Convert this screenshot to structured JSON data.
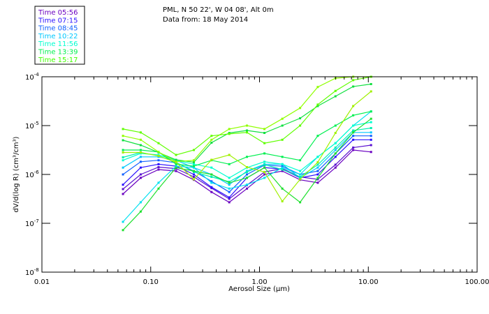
{
  "chart_data": {
    "type": "line",
    "title_lines": [
      "PML, N 50 22', W 04 08', Alt 0m",
      "Data from: 18 May 2014"
    ],
    "xlabel": "Aerosol Size (µm)",
    "ylabel": "dV/d(log R) (cm³/cm³)",
    "xscale": "log",
    "yscale": "log",
    "xlim": [
      0.01,
      100
    ],
    "ylim": [
      1e-08,
      0.0001
    ],
    "xticks": [
      {
        "v": 0.01,
        "label": "0.01"
      },
      {
        "v": 0.1,
        "label": "0.10"
      },
      {
        "v": 1,
        "label": "1.00"
      },
      {
        "v": 10,
        "label": "10.00"
      },
      {
        "v": 100,
        "label": "100.00"
      }
    ],
    "yticks": [
      {
        "exp": -4,
        "label": "10",
        "sup": "-4"
      },
      {
        "exp": -5,
        "label": "10",
        "sup": "-5"
      },
      {
        "exp": -6,
        "label": "10",
        "sup": "-6"
      },
      {
        "exp": -7,
        "label": "10",
        "sup": "-7"
      },
      {
        "exp": -8,
        "label": "10",
        "sup": "-8"
      }
    ],
    "legend_position": "top-left, outside",
    "legend": [
      {
        "label": "Time 05:56",
        "color": "#6a00c0"
      },
      {
        "label": "Time 07:15",
        "color": "#2a10ff"
      },
      {
        "label": "Time 08:45",
        "color": "#1060ff"
      },
      {
        "label": "Time 10:22",
        "color": "#00c8ff"
      },
      {
        "label": "Time 11:56",
        "color": "#00ffd0"
      },
      {
        "label": "Time 13:39",
        "color": "#00f050"
      },
      {
        "label": "Time 15:17",
        "color": "#40ff00"
      }
    ],
    "x_um": [
      0.0556,
      0.0809,
      0.118,
      0.171,
      0.249,
      0.362,
      0.527,
      0.766,
      1.11,
      1.62,
      2.36,
      3.43,
      4.99,
      7.26,
      10.6
    ],
    "series_note": "values_log10 = log10 of dV/d(log R)",
    "series": [
      {
        "name": "Time 05:56",
        "color": "#6a00c0",
        "values_log10": [
          -6.4,
          -6.07,
          -5.9,
          -5.93,
          -6.11,
          -6.36,
          -6.57,
          -6.29,
          -6.0,
          -5.93,
          -6.11,
          -6.17,
          -5.86,
          -5.5,
          -5.54
        ]
      },
      {
        "name": "Time 05:56",
        "color": "#5a10d0",
        "values_log10": [
          -6.3,
          -6.0,
          -5.85,
          -5.88,
          -6.05,
          -6.28,
          -6.5,
          -6.22,
          -5.95,
          -5.88,
          -6.05,
          -6.1,
          -5.8,
          -5.45,
          -5.4
        ]
      },
      {
        "name": "Time 07:15",
        "color": "#2a10ff",
        "values_log10": [
          -6.21,
          -5.86,
          -5.79,
          -5.83,
          -6.0,
          -6.26,
          -6.47,
          -6.07,
          -5.86,
          -5.89,
          -6.07,
          -6.0,
          -5.64,
          -5.29,
          -5.29
        ]
      },
      {
        "name": "Time 08:45",
        "color": "#1060ff",
        "values_log10": [
          -6.0,
          -5.74,
          -5.71,
          -5.76,
          -5.93,
          -6.14,
          -6.36,
          -6.0,
          -5.81,
          -5.83,
          -6.0,
          -5.93,
          -5.57,
          -5.21,
          -5.21
        ]
      },
      {
        "name": "Time 10:22",
        "color": "#00c8ff",
        "values_log10": [
          -5.86,
          -5.64,
          -5.64,
          -5.71,
          -5.86,
          -6.0,
          -6.21,
          -5.93,
          -5.79,
          -5.79,
          -6.07,
          -5.86,
          -5.5,
          -5.14,
          -5.14
        ]
      },
      {
        "name": "Time 10:22",
        "color": "#00e0f0",
        "values_log10": [
          -6.97,
          -6.57,
          -6.17,
          -5.83,
          -5.86,
          -6.17,
          -6.29,
          -6.21,
          -6.07,
          -5.86,
          -6.0,
          -5.64,
          -5.36,
          -5.0,
          -4.71
        ]
      },
      {
        "name": "Time 11:56",
        "color": "#00ffd0",
        "values_log10": [
          -5.71,
          -5.57,
          -5.6,
          -5.71,
          -5.79,
          -5.86,
          -6.07,
          -5.86,
          -5.74,
          -5.79,
          -5.93,
          -5.64,
          -5.36,
          -5.0,
          -4.93
        ]
      },
      {
        "name": "Time 11:56",
        "color": "#00f0b0",
        "values_log10": [
          -5.65,
          -5.55,
          -5.62,
          -5.75,
          -5.95,
          -6.05,
          -6.15,
          -5.95,
          -5.8,
          -5.9,
          -6.05,
          -5.8,
          -5.45,
          -5.1,
          -5.05
        ]
      },
      {
        "name": "Time 13:39",
        "color": "#00f050",
        "values_log10": [
          -5.5,
          -5.5,
          -5.54,
          -5.79,
          -5.83,
          -5.71,
          -5.79,
          -5.64,
          -5.57,
          -5.64,
          -5.71,
          -5.21,
          -5.0,
          -4.79,
          -4.71
        ]
      },
      {
        "name": "Time 13:39",
        "color": "#20e030",
        "values_log10": [
          -7.14,
          -6.76,
          -6.29,
          -5.86,
          -5.93,
          -6.0,
          -6.17,
          -6.07,
          -5.86,
          -6.29,
          -6.57,
          -6.07,
          -5.57,
          -5.14,
          -4.86
        ]
      },
      {
        "name": "Time 13:39",
        "color": "#10e040",
        "values_log10": [
          -5.3,
          -5.4,
          -5.55,
          -5.7,
          -5.75,
          -5.35,
          -5.15,
          -5.1,
          -5.15,
          -5.0,
          -4.85,
          -4.6,
          -4.4,
          -4.2,
          -4.15
        ]
      },
      {
        "name": "Time 15:17",
        "color": "#90ff00",
        "values_log10": [
          -5.21,
          -5.29,
          -5.54,
          -5.74,
          -5.71,
          -5.29,
          -5.07,
          -5.0,
          -5.07,
          -4.86,
          -4.64,
          -4.21,
          -4.03,
          -4.0,
          -4.0
        ]
      },
      {
        "name": "Time 15:17",
        "color": "#60ff00",
        "values_log10": [
          -5.07,
          -5.14,
          -5.36,
          -5.6,
          -5.5,
          -5.21,
          -5.17,
          -5.14,
          -5.36,
          -5.29,
          -5.0,
          -4.57,
          -4.29,
          -4.07,
          -4.0
        ]
      },
      {
        "name": "Time 15:17",
        "color": "#a0f000",
        "values_log10": [
          -5.55,
          -5.55,
          -5.62,
          -5.75,
          -6.1,
          -5.7,
          -5.6,
          -5.85,
          -5.95,
          -6.55,
          -6.1,
          -5.75,
          -5.15,
          -4.6,
          -4.3
        ]
      }
    ]
  }
}
